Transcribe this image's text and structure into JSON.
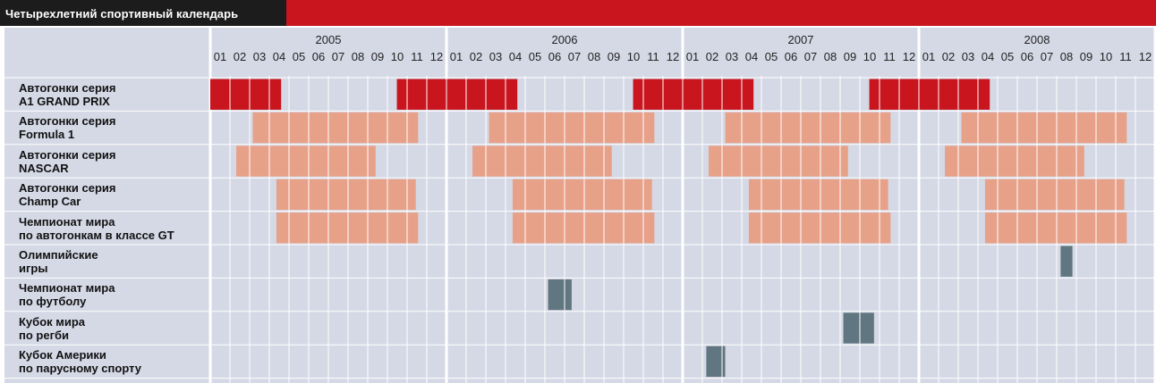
{
  "title": "Четырехлетний спортивный календарь",
  "colors": {
    "title_bar": "#1c1c1c",
    "accent": "#c8151e",
    "background": "#d5d9e6",
    "grid_line": "#ffffff",
    "a1_bars": "#c8151e",
    "racing_bars": "#e8a189",
    "event_bars": "#607680",
    "bar_divider": "#ffffff"
  },
  "chart_data": {
    "type": "gantt",
    "x_unit": "month",
    "years": [
      "2005",
      "2006",
      "2007",
      "2008"
    ],
    "month_labels": [
      "01",
      "02",
      "03",
      "04",
      "05",
      "06",
      "07",
      "08",
      "09",
      "10",
      "11",
      "12"
    ],
    "x_range": [
      2005.0,
      2009.0
    ],
    "grid": true,
    "rows": [
      {
        "label_lines": [
          "Автогонки серия",
          "A1 GRAND PRIX"
        ],
        "color_key": "a1_bars",
        "spans": [
          [
            2005.0,
            2005.3
          ],
          [
            2005.79,
            2006.3
          ],
          [
            2006.79,
            2007.3
          ],
          [
            2007.79,
            2008.3
          ]
        ]
      },
      {
        "label_lines": [
          "Автогонки серия",
          "Formula 1"
        ],
        "color_key": "racing_bars",
        "spans": [
          [
            2005.18,
            2005.88
          ],
          [
            2006.18,
            2006.88
          ],
          [
            2007.18,
            2007.88
          ],
          [
            2008.18,
            2008.88
          ]
        ]
      },
      {
        "label_lines": [
          "Автогонки серия",
          "NASCAR"
        ],
        "color_key": "racing_bars",
        "spans": [
          [
            2005.11,
            2005.7
          ],
          [
            2006.11,
            2006.7
          ],
          [
            2007.11,
            2007.7
          ],
          [
            2008.11,
            2008.7
          ]
        ]
      },
      {
        "label_lines": [
          "Автогонки серия",
          "Champ Car"
        ],
        "color_key": "racing_bars",
        "spans": [
          [
            2005.28,
            2005.87
          ],
          [
            2006.28,
            2006.87
          ],
          [
            2007.28,
            2007.87
          ],
          [
            2008.28,
            2008.87
          ]
        ]
      },
      {
        "label_lines": [
          "Чемпионат мира",
          "по автогонкам в классе GT"
        ],
        "color_key": "racing_bars",
        "spans": [
          [
            2005.28,
            2005.88
          ],
          [
            2006.28,
            2006.88
          ],
          [
            2007.28,
            2007.88
          ],
          [
            2008.28,
            2008.88
          ]
        ]
      },
      {
        "label_lines": [
          "Олимпийские",
          "игры"
        ],
        "color_key": "event_bars",
        "spans": [
          [
            2008.6,
            2008.65
          ]
        ]
      },
      {
        "label_lines": [
          "Чемпионат мира",
          "по футболу"
        ],
        "color_key": "event_bars",
        "spans": [
          [
            2006.43,
            2006.53
          ]
        ]
      },
      {
        "label_lines": [
          "Кубок мира",
          "по регби"
        ],
        "color_key": "event_bars",
        "spans": [
          [
            2007.68,
            2007.81
          ]
        ]
      },
      {
        "label_lines": [
          "Кубок Америки",
          "по парусному спорту"
        ],
        "color_key": "event_bars",
        "spans": [
          [
            2007.1,
            2007.18
          ]
        ]
      }
    ]
  }
}
